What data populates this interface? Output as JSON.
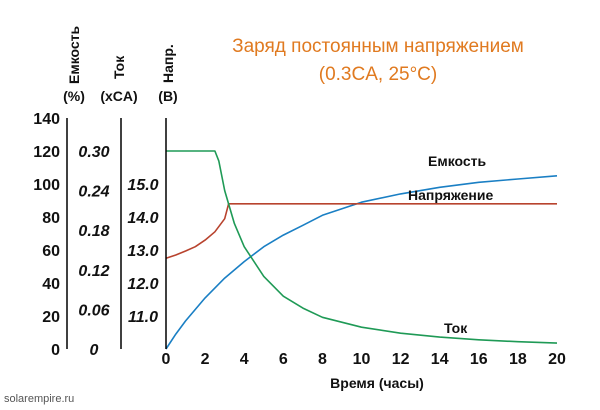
{
  "chart_data": {
    "type": "line",
    "title": "Заряд постоянным напряжением",
    "subtitle": "(0.3CA, 25°C)",
    "xlabel": "Время (часы)",
    "x_ticks": [
      "0",
      "2",
      "4",
      "6",
      "8",
      "10",
      "12",
      "14",
      "16",
      "18",
      "20"
    ],
    "xlim": [
      0,
      20
    ],
    "axes": [
      {
        "name": "Емкость",
        "unit": "(%)",
        "range": [
          0,
          140
        ],
        "ticks": [
          "0",
          "20",
          "40",
          "60",
          "80",
          "100",
          "120",
          "140"
        ]
      },
      {
        "name": "Ток",
        "unit": "(xCA)",
        "range": [
          0,
          0.35
        ],
        "ticks": [
          "0",
          "0.06",
          "0.12",
          "0.18",
          "0.24",
          "0.30"
        ]
      },
      {
        "name": "Напр.",
        "unit": "(В)",
        "range": [
          10,
          17
        ],
        "ticks": [
          "11.0",
          "12.0",
          "13.0",
          "14.0",
          "15.0"
        ]
      }
    ],
    "series": [
      {
        "name": "Емкость",
        "axis": 0,
        "color": "#1a7fc4",
        "x": [
          0,
          0.5,
          1,
          2,
          3,
          4,
          5,
          6,
          7,
          8,
          10,
          12,
          14,
          16,
          18,
          20
        ],
        "y": [
          0,
          9,
          17,
          31,
          43,
          53,
          62,
          69,
          75,
          81,
          89,
          94,
          98,
          101,
          103,
          105
        ]
      },
      {
        "name": "Напряжение",
        "axis": 2,
        "color": "#b8432e",
        "x": [
          0,
          0.5,
          1,
          1.5,
          2,
          2.5,
          3,
          3.2,
          4,
          6,
          8,
          10,
          12,
          14,
          16,
          18,
          20
        ],
        "y": [
          12.75,
          12.85,
          12.97,
          13.1,
          13.3,
          13.55,
          13.95,
          14.4,
          14.4,
          14.4,
          14.4,
          14.4,
          14.4,
          14.4,
          14.4,
          14.4,
          14.4
        ]
      },
      {
        "name": "Ток",
        "axis": 1,
        "color": "#1f9a56",
        "x": [
          0,
          1,
          2,
          2.5,
          2.7,
          3,
          3.5,
          4,
          5,
          6,
          7,
          8,
          10,
          12,
          14,
          16,
          18,
          20
        ],
        "y": [
          0.3,
          0.3,
          0.3,
          0.3,
          0.285,
          0.24,
          0.19,
          0.155,
          0.11,
          0.08,
          0.062,
          0.048,
          0.033,
          0.024,
          0.018,
          0.014,
          0.011,
          0.009
        ]
      }
    ]
  },
  "footer": {
    "source": "solarempire.ru"
  }
}
